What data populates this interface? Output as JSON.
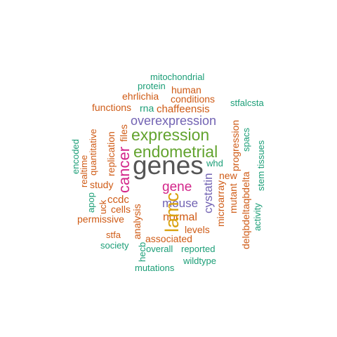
{
  "words": {
    "genes": "genes",
    "endometrial": "endometrial",
    "expression": "expression",
    "overexpression": "overexpression",
    "lamc": "lamc",
    "cancer": "cancer",
    "gene": "gene",
    "mouse": "mouse",
    "cystatin": "cystatin",
    "normal": "normal",
    "chaffeensis": "chaffeensis",
    "conditions": "conditions",
    "human": "human",
    "ehrlichia": "ehrlichia",
    "functions": "functions",
    "rna": "rna",
    "protein": "protein",
    "mitochondrial": "mitochondrial",
    "stfalcsta": "stfalcsta",
    "whd": "whd",
    "new": "new",
    "progression": "progression",
    "spacs": "spacs",
    "mutant": "mutant",
    "microarray": "microarray",
    "delqbdeltaqbdelta": "delqbdeltaqbdelta",
    "stem_tissues": "stem tissues",
    "activity": "activity",
    "levels": "levels",
    "associated": "associated",
    "reported": "reported",
    "overall": "overall",
    "wildtype": "wildtype",
    "mutations": "mutations",
    "hecb": "hecb",
    "society": "society",
    "stfa": "stfa",
    "analysis": "analysis",
    "permissive": "permissive",
    "cells": "cells",
    "ccdc": "ccdc",
    "uck": "uck",
    "apop": "apop",
    "study": "study",
    "realtime": "realtime",
    "encoded": "encoded",
    "quantitative": "quantitative",
    "replication": "replication",
    "files": "files"
  },
  "colors": {
    "gray": "#555555",
    "green": "#62a32e",
    "purple": "#7263b3",
    "pink": "#d3268a",
    "gold": "#d9a20f",
    "orange": "#cf5b16",
    "teal": "#1b9e77"
  }
}
